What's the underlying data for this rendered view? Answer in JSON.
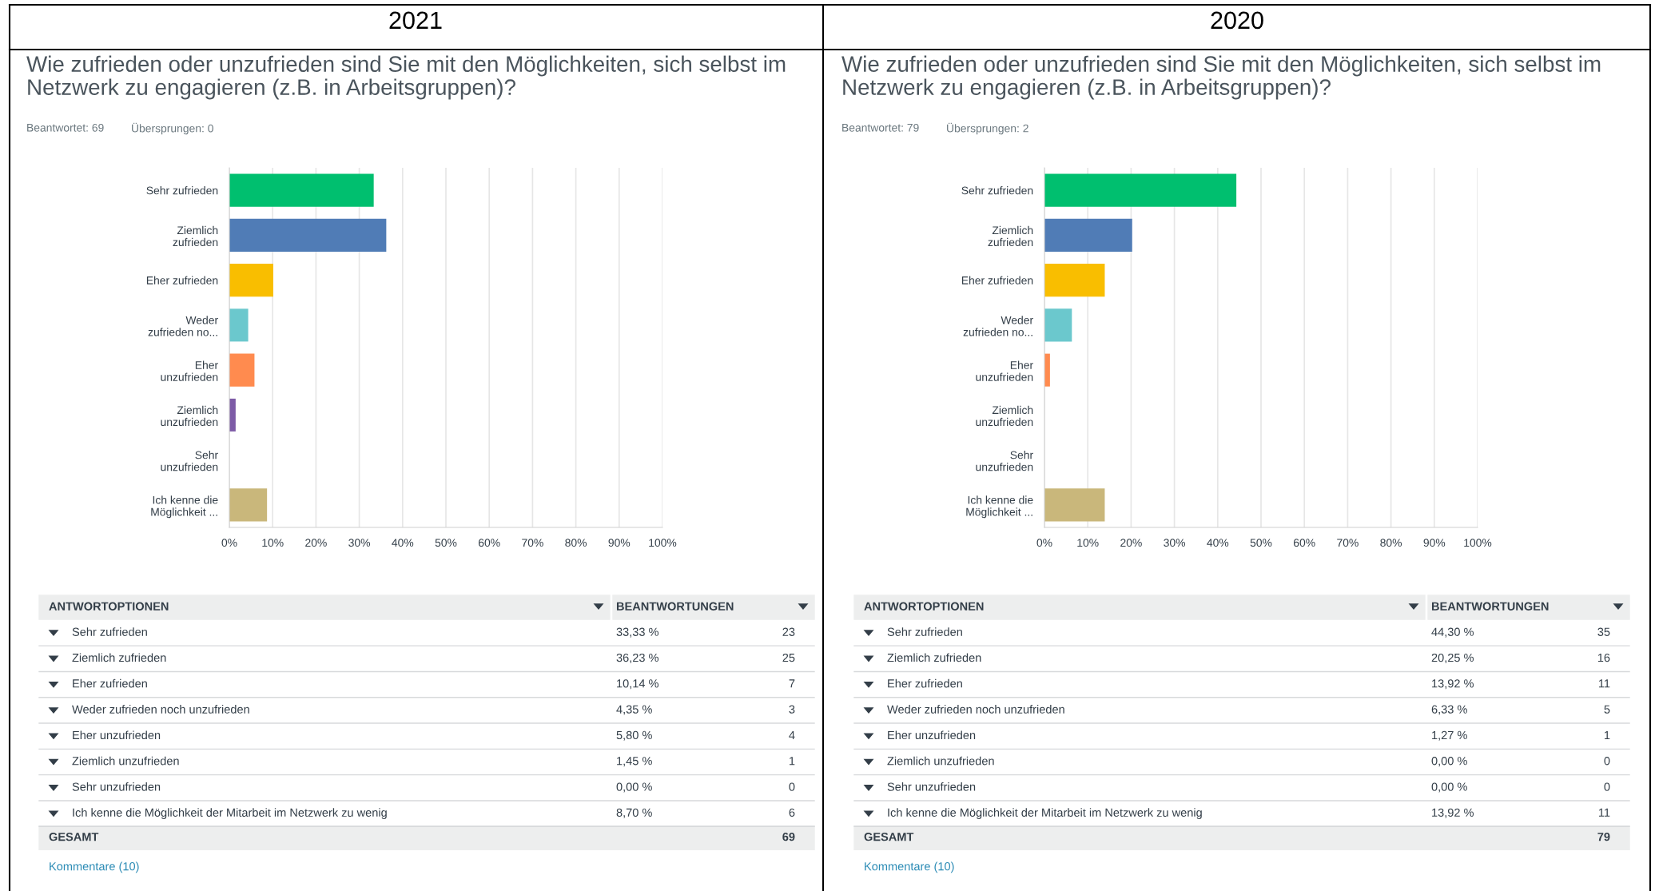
{
  "chart_data": [
    {
      "type": "bar",
      "orientation": "horizontal",
      "title": "2021",
      "subtitle": "Wie zufrieden oder unzufrieden sind Sie mit den Möglichkeiten, sich selbst im\nNetzwerk zu engagieren (z.B. in Arbeitsgruppen)?",
      "categories": [
        "Sehr zufrieden",
        "Ziemlich\nzufrieden",
        "Eher zufrieden",
        "Weder\nzufrieden no...",
        "Eher\nunzufrieden",
        "Ziemlich\nunzufrieden",
        "Sehr\nunzufrieden",
        "Ich kenne die\nMöglichkeit ..."
      ],
      "values": [
        33.33,
        36.23,
        10.14,
        4.35,
        5.8,
        1.45,
        0.0,
        8.7
      ],
      "colors": [
        "#00bf6f",
        "#507cb6",
        "#f9be00",
        "#6bc8cd",
        "#ff8b4f",
        "#7d5ba6",
        "#d25f90",
        "#c9b77b"
      ],
      "xlim": [
        0,
        100
      ],
      "xticks": [
        {
          "value": 0,
          "label": "0%"
        },
        {
          "value": 10,
          "label": "10%"
        },
        {
          "value": 20,
          "label": "20%"
        },
        {
          "value": 30,
          "label": "30%"
        },
        {
          "value": 40,
          "label": "40%"
        },
        {
          "value": 50,
          "label": "50%"
        },
        {
          "value": 60,
          "label": "60%"
        },
        {
          "value": 70,
          "label": "70%"
        },
        {
          "value": 80,
          "label": "80%"
        },
        {
          "value": 90,
          "label": "90%"
        },
        {
          "value": 100,
          "label": "100%"
        }
      ],
      "grid": "x",
      "legend": false,
      "annotations": [
        "Beantwortet: 69",
        "Übersprungen: 0",
        "ANTWORTOPTIONEN",
        "BEANTWORTUNGEN",
        "Sehr zufrieden",
        "Ziemlich zufrieden",
        "Eher zufrieden",
        "Weder zufrieden noch unzufrieden",
        "Eher unzufrieden",
        "Ziemlich unzufrieden",
        "Sehr unzufrieden",
        "Ich kenne die Möglichkeit der Mitarbeit im Netzwerk zu wenig",
        "33,33 %",
        "36,23 %",
        "10,14 %",
        "4,35 %",
        "5,80 %",
        "1,45 %",
        "0,00 %",
        "8,70 %",
        "23",
        "25",
        "7",
        "3",
        "4",
        "1",
        "0",
        "6",
        "GESAMT",
        "69",
        "Kommentare (10)"
      ]
    },
    {
      "type": "bar",
      "orientation": "horizontal",
      "title": "2020",
      "subtitle": "Wie zufrieden oder unzufrieden sind Sie mit den Möglichkeiten, sich selbst im\nNetzwerk zu engagieren (z.B. in Arbeitsgruppen)?",
      "categories": [
        "Sehr zufrieden",
        "Ziemlich\nzufrieden",
        "Eher zufrieden",
        "Weder\nzufrieden no...",
        "Eher\nunzufrieden",
        "Ziemlich\nunzufrieden",
        "Sehr\nunzufrieden",
        "Ich kenne die\nMöglichkeit ..."
      ],
      "values": [
        44.3,
        20.25,
        13.92,
        6.33,
        1.27,
        0.0,
        0.0,
        13.92
      ],
      "colors": [
        "#00bf6f",
        "#507cb6",
        "#f9be00",
        "#6bc8cd",
        "#ff8b4f",
        "#7d5ba6",
        "#d25f90",
        "#c9b77b"
      ],
      "xlim": [
        0,
        100
      ],
      "xticks": [
        {
          "value": 0,
          "label": "0%"
        },
        {
          "value": 10,
          "label": "10%"
        },
        {
          "value": 20,
          "label": "20%"
        },
        {
          "value": 30,
          "label": "30%"
        },
        {
          "value": 40,
          "label": "40%"
        },
        {
          "value": 50,
          "label": "50%"
        },
        {
          "value": 60,
          "label": "60%"
        },
        {
          "value": 70,
          "label": "70%"
        },
        {
          "value": 80,
          "label": "80%"
        },
        {
          "value": 90,
          "label": "90%"
        },
        {
          "value": 100,
          "label": "100%"
        }
      ],
      "grid": "x",
      "legend": false,
      "annotations": [
        "Beantwortet: 79",
        "Übersprungen: 2",
        "ANTWORTOPTIONEN",
        "BEANTWORTUNGEN",
        "Sehr zufrieden",
        "Ziemlich zufrieden",
        "Eher zufrieden",
        "Weder zufrieden noch unzufrieden",
        "Eher unzufrieden",
        "Ziemlich unzufrieden",
        "Sehr unzufrieden",
        "Ich kenne die Möglichkeit der Mitarbeit im Netzwerk zu wenig",
        "44,30 %",
        "20,25 %",
        "13,92 %",
        "6,33 %",
        "1,27 %",
        "0,00 %",
        "0,00 %",
        "13,92 %",
        "35",
        "16",
        "11",
        "5",
        "1",
        "0",
        "0",
        "11",
        "GESAMT",
        "79",
        "Kommentare (10)"
      ]
    }
  ]
}
